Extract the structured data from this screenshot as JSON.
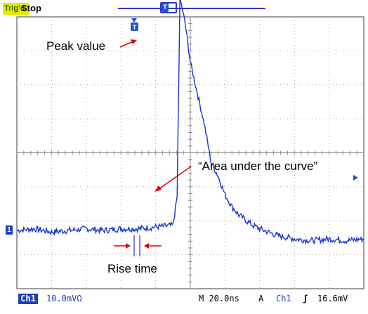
{
  "header": {
    "trigger_status": "Trig'd",
    "acquisition_state": "Stop"
  },
  "channel_marker": "1",
  "trigger_marker": "T",
  "status_bar": {
    "channel": "Ch1",
    "channel_scale": "10.0mVΩ",
    "timebase": "M 20.0ns",
    "trigger_mode": "A",
    "trigger_source": "Ch1",
    "trigger_slope": "ʃ",
    "trigger_level": "16.6mV"
  },
  "annotations": {
    "peak": "Peak value",
    "area": "“Area under the curve”",
    "rise": "Rise time"
  },
  "colors": {
    "trace": "#1a33d6",
    "arrows": "#e00000",
    "graticule": "#a6a6a6",
    "channel_badge": "#1e3fbf"
  },
  "chart_data": {
    "type": "line",
    "xlabel": "",
    "ylabel": "",
    "series": [
      {
        "values_description_note": "",
        "x": [
          0,
          0.5,
          1.0,
          1.5,
          2.0,
          2.5,
          3.0,
          3.5,
          4.0,
          4.5,
          4.62,
          4.7,
          4.85,
          5.0,
          5.2,
          5.4,
          5.6,
          5.8,
          6.0,
          6.2,
          6.4,
          6.6,
          6.8,
          7.0,
          7.5,
          8.0,
          8.5,
          9.0,
          9.5,
          10.0
        ],
        "y": [
          0.0,
          0.05,
          -0.05,
          0.0,
          0.05,
          0.0,
          0.05,
          0.05,
          0.1,
          0.15,
          1.0,
          6.85,
          6.1,
          4.95,
          4.05,
          3.15,
          2.0,
          1.6,
          1.05,
          0.7,
          0.45,
          0.3,
          0.15,
          0.05,
          -0.15,
          -0.25,
          -0.3,
          -0.25,
          -0.3,
          -0.25
        ]
      }
    ]
  }
}
